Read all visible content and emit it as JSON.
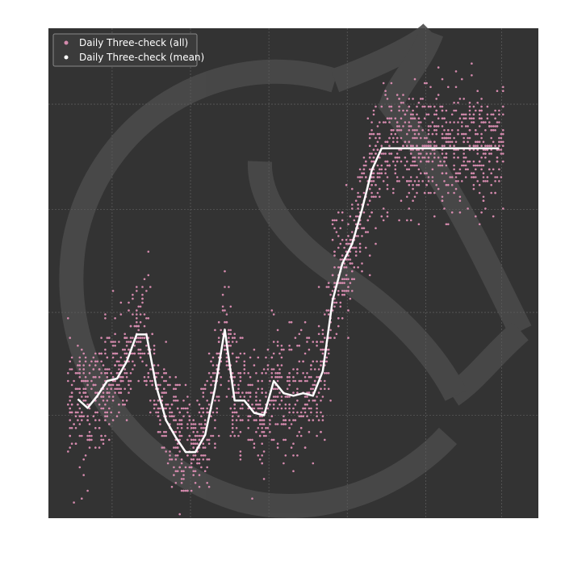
{
  "chart_data": {
    "type": "scatter",
    "title": "",
    "xlabel": "",
    "ylabel": "",
    "xlim": [
      0,
      1000
    ],
    "ylim": [
      0,
      1000
    ],
    "grid": true,
    "legend_position": "top-left",
    "colors": {
      "background": "#333333",
      "grid": "#5a5a5a",
      "points": "#d48aad",
      "mean": "#ffffff",
      "watermark": "#4a4a4a"
    },
    "series": [
      {
        "name": "Daily Three-check (all)",
        "kind": "points",
        "spread": 60,
        "count": 2200
      },
      {
        "name": "Daily Three-check (mean)",
        "kind": "line",
        "x": [
          60,
          80,
          100,
          120,
          140,
          160,
          180,
          200,
          220,
          240,
          260,
          280,
          300,
          320,
          340,
          360,
          380,
          400,
          420,
          440,
          460,
          480,
          500,
          520,
          540,
          560,
          580,
          600,
          620,
          640,
          660,
          680,
          700,
          720,
          740,
          760,
          780,
          800,
          820,
          840,
          860,
          880,
          900,
          920
        ],
        "y": [
          243,
          225,
          250,
          280,
          285,
          320,
          375,
          375,
          270,
          200,
          165,
          135,
          135,
          170,
          265,
          385,
          240,
          240,
          215,
          210,
          280,
          255,
          250,
          255,
          250,
          300,
          445,
          520,
          560,
          630,
          710,
          755,
          755,
          755,
          755,
          755,
          755,
          755,
          755,
          755,
          755,
          755,
          755,
          755
        ]
      }
    ]
  }
}
